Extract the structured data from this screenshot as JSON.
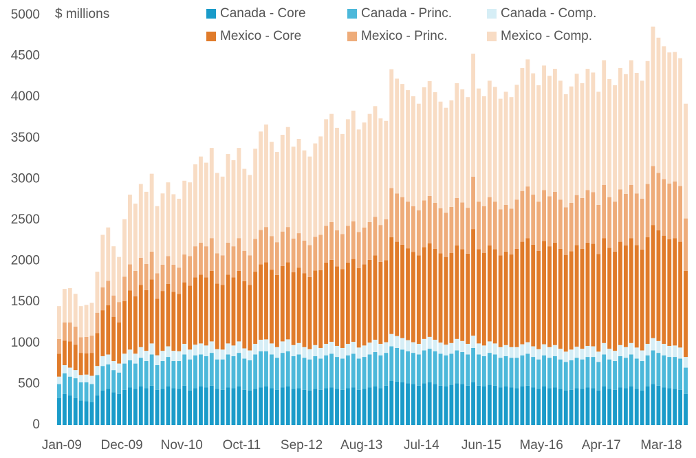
{
  "chart_data": {
    "type": "stacked_bar",
    "ylabel": "$ millions",
    "ylim": [
      0,
      5000
    ],
    "yticks": [
      0,
      500,
      1000,
      1500,
      2000,
      2500,
      3000,
      3500,
      4000,
      4500,
      5000
    ],
    "categories": [
      "Jan-09",
      null,
      null,
      null,
      null,
      null,
      null,
      null,
      null,
      null,
      null,
      "Dec-09",
      null,
      null,
      null,
      null,
      null,
      null,
      null,
      null,
      null,
      null,
      "Nov-10",
      null,
      null,
      null,
      null,
      null,
      null,
      null,
      null,
      null,
      null,
      "Oct-11",
      null,
      null,
      null,
      null,
      null,
      null,
      null,
      null,
      null,
      null,
      "Sep-12",
      null,
      null,
      null,
      null,
      null,
      null,
      null,
      null,
      null,
      null,
      "Aug-13",
      null,
      null,
      null,
      null,
      null,
      null,
      null,
      null,
      null,
      null,
      "Jul-14",
      null,
      null,
      null,
      null,
      null,
      null,
      null,
      null,
      null,
      null,
      "Jun-15",
      null,
      null,
      null,
      null,
      null,
      null,
      null,
      null,
      null,
      null,
      "May-16",
      null,
      null,
      null,
      null,
      null,
      null,
      null,
      null,
      null,
      null,
      "Apr-17",
      null,
      null,
      null,
      null,
      null,
      null,
      null,
      null,
      null,
      null,
      "Mar-18",
      null,
      null,
      null,
      null,
      null
    ],
    "series": [
      {
        "name": "Canada - Core",
        "color": "#1a9bc9",
        "values": [
          330,
          380,
          360,
          330,
          300,
          290,
          280,
          360,
          420,
          440,
          400,
          380,
          430,
          460,
          440,
          470,
          450,
          480,
          430,
          440,
          470,
          450,
          440,
          480,
          420,
          450,
          470,
          460,
          480,
          440,
          430,
          460,
          450,
          470,
          430,
          420,
          440,
          460,
          470,
          450,
          430,
          460,
          470,
          440,
          450,
          430,
          420,
          440,
          430,
          450,
          460,
          440,
          430,
          450,
          460,
          430,
          440,
          460,
          470,
          450,
          480,
          540,
          530,
          520,
          510,
          500,
          480,
          510,
          520,
          500,
          480,
          470,
          490,
          510,
          500,
          480,
          520,
          480,
          470,
          490,
          480,
          460,
          470,
          460,
          450,
          470,
          480,
          460,
          440,
          470,
          450,
          460,
          440,
          420,
          430,
          450,
          440,
          460,
          450,
          420,
          470,
          440,
          430,
          460,
          450,
          470,
          440,
          420,
          470,
          500,
          480,
          460,
          450,
          440,
          430,
          380
        ]
      },
      {
        "name": "Canada - Princ.",
        "color": "#4cb8da",
        "values": [
          170,
          250,
          230,
          240,
          220,
          230,
          220,
          250,
          300,
          300,
          270,
          260,
          320,
          330,
          310,
          350,
          330,
          380,
          300,
          340,
          360,
          330,
          340,
          380,
          380,
          400,
          390,
          380,
          400,
          360,
          370,
          400,
          390,
          410,
          380,
          370,
          420,
          440,
          430,
          410,
          390,
          420,
          430,
          400,
          410,
          390,
          380,
          400,
          380,
          400,
          410,
          390,
          380,
          400,
          410,
          380,
          390,
          400,
          420,
          400,
          400,
          420,
          410,
          400,
          390,
          380,
          380,
          400,
          410,
          400,
          390,
          380,
          380,
          400,
          390,
          380,
          420,
          380,
          370,
          390,
          380,
          360,
          370,
          360,
          370,
          380,
          390,
          370,
          360,
          380,
          370,
          380,
          360,
          350,
          360,
          370,
          360,
          370,
          380,
          350,
          390,
          360,
          350,
          380,
          370,
          390,
          370,
          360,
          380,
          410,
          400,
          390,
          380,
          390,
          380,
          320
        ]
      },
      {
        "name": "Canada - Comp.",
        "color": "#d6eef6",
        "values": [
          90,
          100,
          110,
          100,
          90,
          95,
          100,
          110,
          120,
          120,
          110,
          110,
          120,
          130,
          120,
          130,
          125,
          135,
          120,
          125,
          130,
          125,
          120,
          130,
          120,
          130,
          135,
          130,
          140,
          125,
          120,
          135,
          130,
          140,
          125,
          120,
          130,
          140,
          145,
          135,
          130,
          140,
          145,
          135,
          140,
          130,
          125,
          135,
          130,
          140,
          145,
          135,
          130,
          140,
          145,
          135,
          140,
          145,
          150,
          140,
          130,
          150,
          145,
          140,
          135,
          130,
          130,
          140,
          145,
          140,
          135,
          130,
          130,
          140,
          135,
          130,
          150,
          135,
          130,
          140,
          135,
          130,
          135,
          130,
          130,
          135,
          140,
          130,
          125,
          135,
          130,
          135,
          130,
          125,
          130,
          135,
          130,
          135,
          130,
          125,
          140,
          130,
          125,
          135,
          130,
          140,
          135,
          130,
          140,
          150,
          145,
          140,
          135,
          140,
          135,
          130
        ]
      },
      {
        "name": "Mexico - Core",
        "color": "#e07b2a",
        "values": [
          280,
          300,
          320,
          310,
          270,
          260,
          280,
          400,
          560,
          600,
          540,
          500,
          640,
          720,
          700,
          760,
          740,
          780,
          690,
          730,
          760,
          720,
          700,
          750,
          780,
          820,
          840,
          830,
          860,
          800,
          790,
          840,
          830,
          860,
          820,
          800,
          880,
          920,
          940,
          900,
          880,
          920,
          940,
          890,
          920,
          900,
          880,
          910,
          950,
          990,
          1000,
          970,
          960,
          990,
          1010,
          970,
          990,
          1010,
          1030,
          1000,
          1000,
          1180,
          1150,
          1140,
          1120,
          1100,
          1080,
          1120,
          1140,
          1110,
          1090,
          1070,
          1100,
          1140,
          1120,
          1100,
          1300,
          1150,
          1130,
          1170,
          1150,
          1120,
          1140,
          1130,
          1200,
          1250,
          1270,
          1240,
          1200,
          1260,
          1230,
          1250,
          1220,
          1180,
          1200,
          1240,
          1220,
          1260,
          1250,
          1190,
          1280,
          1230,
          1210,
          1260,
          1240,
          1280,
          1250,
          1230,
          1300,
          1380,
          1350,
          1320,
          1300,
          1310,
          1290,
          1050
        ]
      },
      {
        "name": "Mexico - Princ.",
        "color": "#eeac7a",
        "values": [
          180,
          220,
          230,
          220,
          190,
          200,
          210,
          250,
          280,
          300,
          260,
          250,
          300,
          320,
          310,
          330,
          320,
          340,
          310,
          320,
          340,
          330,
          320,
          340,
          360,
          380,
          390,
          380,
          400,
          370,
          360,
          390,
          380,
          400,
          370,
          360,
          400,
          420,
          430,
          410,
          400,
          420,
          430,
          410,
          420,
          400,
          390,
          410,
          430,
          450,
          460,
          440,
          430,
          450,
          460,
          440,
          450,
          460,
          470,
          450,
          500,
          600,
          590,
          580,
          570,
          560,
          550,
          570,
          580,
          560,
          550,
          540,
          560,
          580,
          570,
          560,
          640,
          580,
          570,
          590,
          580,
          560,
          570,
          560,
          600,
          620,
          630,
          610,
          600,
          620,
          610,
          620,
          600,
          580,
          590,
          610,
          620,
          640,
          630,
          600,
          650,
          620,
          610,
          640,
          630,
          650,
          630,
          620,
          650,
          720,
          700,
          690,
          680,
          690,
          680,
          640
        ]
      },
      {
        "name": "Mexico - Comp.",
        "color": "#f8dcc4",
        "values": [
          400,
          410,
          420,
          400,
          380,
          390,
          400,
          500,
          640,
          650,
          600,
          550,
          700,
          850,
          820,
          900,
          880,
          950,
          820,
          870,
          900,
          860,
          840,
          900,
          900,
          1000,
          1050,
          1020,
          1100,
          980,
          960,
          1080,
          1050,
          1100,
          1000,
          980,
          1100,
          1200,
          1250,
          1150,
          1100,
          1180,
          1220,
          1120,
          1150,
          1100,
          1080,
          1140,
          1200,
          1300,
          1320,
          1250,
          1220,
          1300,
          1350,
          1250,
          1280,
          1320,
          1350,
          1300,
          1200,
          1450,
          1400,
          1380,
          1360,
          1340,
          1300,
          1380,
          1400,
          1350,
          1300,
          1280,
          1300,
          1400,
          1380,
          1350,
          1500,
          1380,
          1340,
          1420,
          1400,
          1350,
          1380,
          1360,
          1400,
          1500,
          1550,
          1480,
          1420,
          1520,
          1470,
          1500,
          1450,
          1380,
          1420,
          1480,
          1400,
          1480,
          1460,
          1380,
          1520,
          1440,
          1420,
          1480,
          1460,
          1520,
          1470,
          1440,
          1500,
          1700,
          1650,
          1620,
          1600,
          1580,
          1560,
          1400
        ]
      }
    ]
  }
}
